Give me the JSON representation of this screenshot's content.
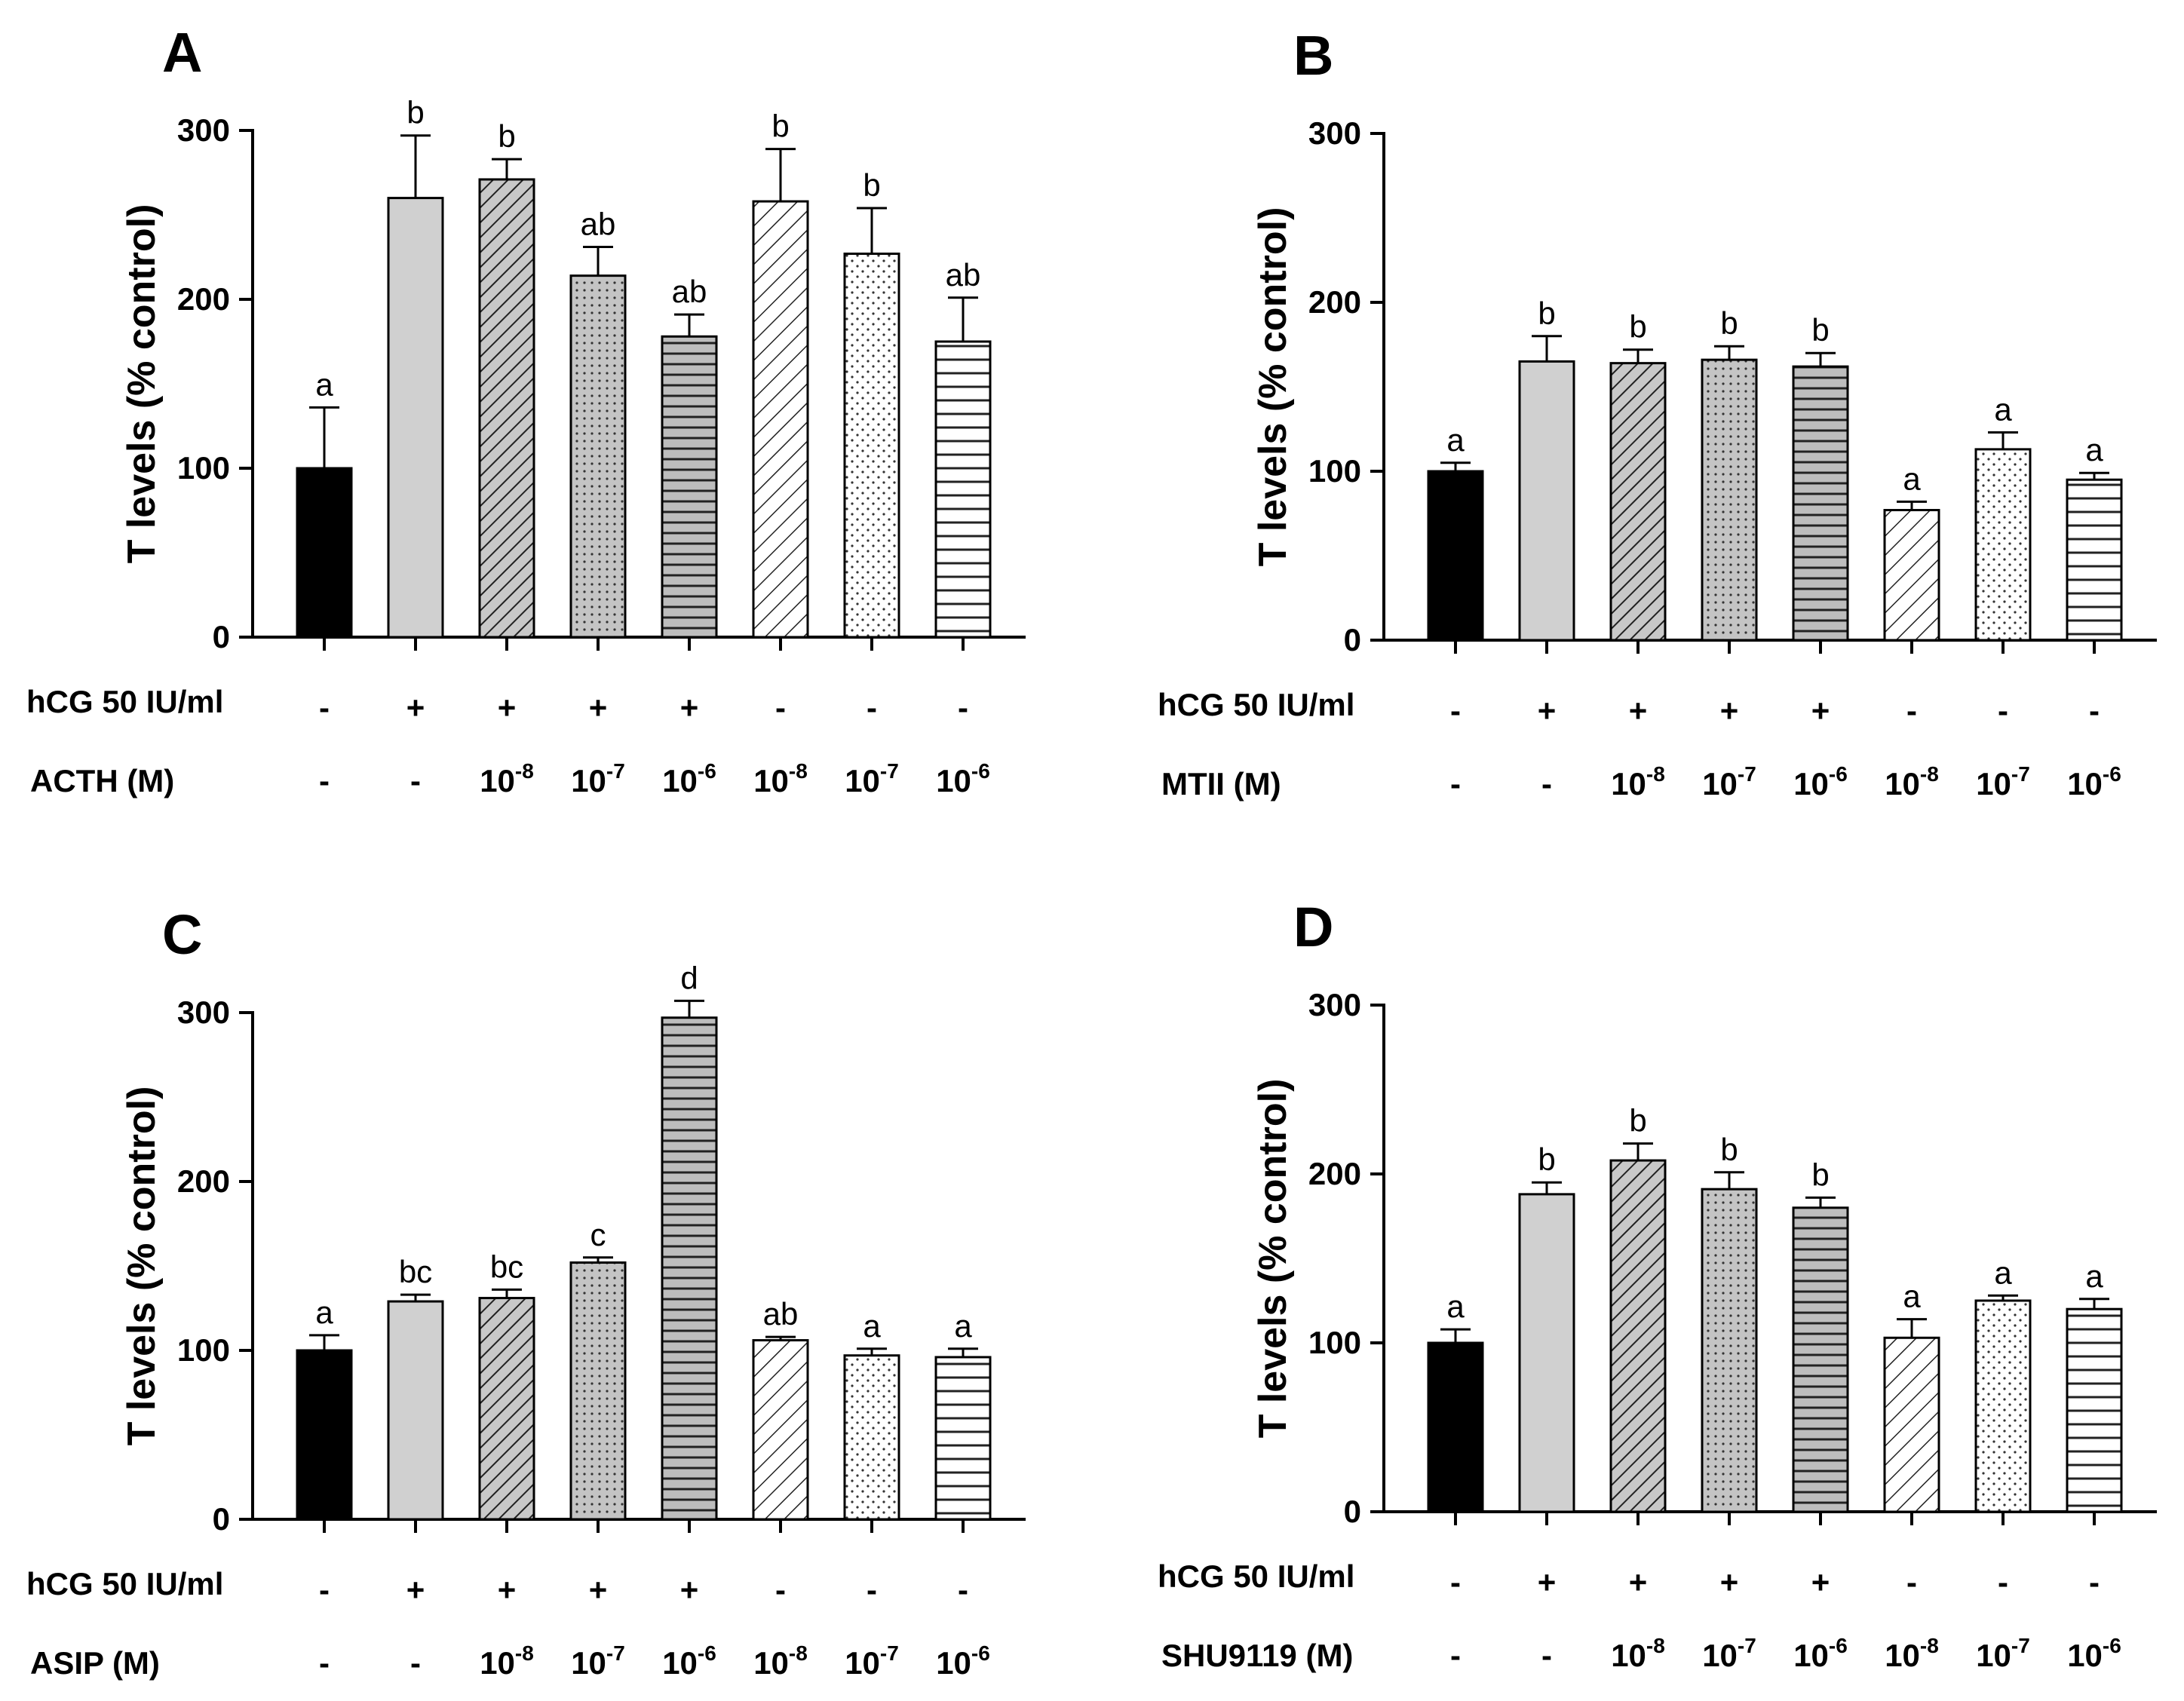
{
  "figure": {
    "y_axis_label": "T levels (% control)",
    "hcg_label": "hCG 50 IU/ml",
    "hcg_values": [
      "-",
      "+",
      "+",
      "+",
      "+",
      "-",
      "-",
      "-"
    ],
    "concentration_values": [
      "-",
      "-",
      "10-8",
      "10-7",
      "10-6",
      "10-8",
      "10-7",
      "10-6"
    ],
    "bar_patterns": [
      "solid-black",
      "solid-light-gray",
      "dense-diagonal-gray",
      "dots-gray",
      "horizontal-gray",
      "sparse-diagonal",
      "sparse-dots",
      "sparse-horizontal"
    ],
    "colors": {
      "black": "#000000",
      "light_gray": "#d0d0d0",
      "mid_gray": "#bdbdbd",
      "white": "#ffffff"
    }
  },
  "chart_data": [
    {
      "type": "bar",
      "panel": "A",
      "agent_label": "ACTH (M)",
      "ylabel": "T levels (% control)",
      "ylim": [
        0,
        300
      ],
      "yticks": [
        0,
        100,
        200,
        300
      ],
      "categories": [
        "control",
        "hCG",
        "hCG+ACTH 10-8",
        "hCG+ACTH 10-7",
        "hCG+ACTH 10-6",
        "ACTH 10-8",
        "ACTH 10-7",
        "ACTH 10-6"
      ],
      "values": [
        100,
        260,
        271,
        214,
        178,
        258,
        227,
        175
      ],
      "errors": [
        36,
        37,
        12,
        17,
        13,
        31,
        27,
        26
      ],
      "letters": [
        "a",
        "b",
        "b",
        "ab",
        "ab",
        "b",
        "b",
        "ab"
      ]
    },
    {
      "type": "bar",
      "panel": "B",
      "agent_label": "MTII (M)",
      "ylabel": "T levels (% control)",
      "ylim": [
        0,
        300
      ],
      "yticks": [
        0,
        100,
        200,
        300
      ],
      "categories": [
        "control",
        "hCG",
        "hCG+MTII 10-8",
        "hCG+MTII 10-7",
        "hCG+MTII 10-6",
        "MTII 10-8",
        "MTII 10-7",
        "MTII 10-6"
      ],
      "values": [
        100,
        165,
        164,
        166,
        162,
        77,
        113,
        95
      ],
      "errors": [
        5,
        15,
        8,
        8,
        8,
        5,
        10,
        4
      ],
      "letters": [
        "a",
        "b",
        "b",
        "b",
        "b",
        "a",
        "a",
        "a"
      ]
    },
    {
      "type": "bar",
      "panel": "C",
      "agent_label": "ASIP (M)",
      "ylabel": "T levels (% control)",
      "ylim": [
        0,
        300
      ],
      "yticks": [
        0,
        100,
        200,
        300
      ],
      "categories": [
        "control",
        "hCG",
        "hCG+ASIP 10-8",
        "hCG+ASIP 10-7",
        "hCG+ASIP 10-6",
        "ASIP 10-8",
        "ASIP 10-7",
        "ASIP 10-6"
      ],
      "values": [
        100,
        129,
        131,
        152,
        297,
        106,
        97,
        96
      ],
      "errors": [
        9,
        4,
        5,
        3,
        10,
        2,
        4,
        5
      ],
      "letters": [
        "a",
        "bc",
        "bc",
        "c",
        "d",
        "ab",
        "a",
        "a"
      ]
    },
    {
      "type": "bar",
      "panel": "D",
      "agent_label": "SHU9119 (M)",
      "ylabel": "T levels (% control)",
      "ylim": [
        0,
        300
      ],
      "yticks": [
        0,
        100,
        200,
        300
      ],
      "categories": [
        "control",
        "hCG",
        "hCG+SHU9119 10-8",
        "hCG+SHU9119 10-7",
        "hCG+SHU9119 10-6",
        "SHU9119 10-8",
        "SHU9119 10-7",
        "SHU9119 10-6"
      ],
      "values": [
        100,
        188,
        208,
        191,
        180,
        103,
        125,
        120
      ],
      "errors": [
        8,
        7,
        10,
        10,
        6,
        11,
        3,
        6
      ],
      "letters": [
        "a",
        "b",
        "b",
        "b",
        "b",
        "a",
        "a",
        "a"
      ]
    }
  ]
}
